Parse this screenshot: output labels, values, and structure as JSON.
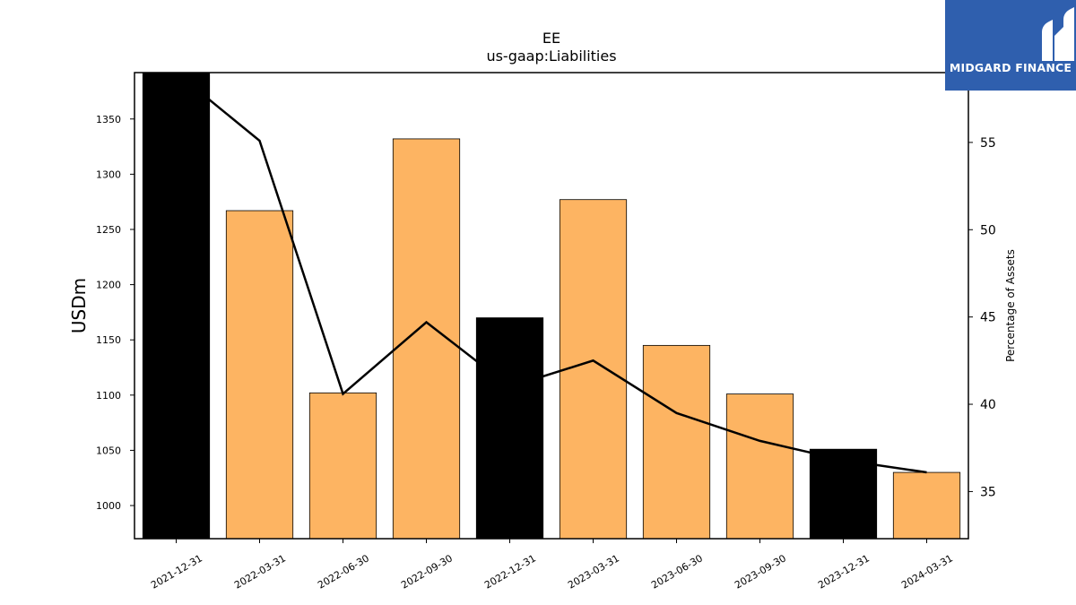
{
  "logo": {
    "text": "MIDGARD FINANCE",
    "icon": "midgard-m-logo-icon",
    "bg": "#2f5fae"
  },
  "chart_data": {
    "type": "bar",
    "title": "EE",
    "subtitle": "us-gaap:Liabilities",
    "ylabel": "USDm",
    "y2label": "Percentage of Assets",
    "categories": [
      "2021-12-31",
      "2022-03-31",
      "2022-06-30",
      "2022-09-30",
      "2022-12-31",
      "2023-03-31",
      "2023-06-30",
      "2023-09-30",
      "2023-12-31",
      "2024-03-31"
    ],
    "values": [
      1392,
      1267,
      1102,
      1332,
      1170,
      1277,
      1145,
      1101,
      1051,
      1030
    ],
    "bar_colors": [
      "#000000",
      "#fdb462",
      "#fdb462",
      "#fdb462",
      "#000000",
      "#fdb462",
      "#fdb462",
      "#fdb462",
      "#000000",
      "#fdb462"
    ],
    "line": {
      "name": "",
      "values": [
        59.0,
        55.1,
        40.6,
        44.7,
        41.0,
        42.5,
        39.5,
        37.9,
        36.8,
        36.1
      ],
      "color": "#000000"
    },
    "ylim": [
      970,
      1392
    ],
    "y2lim": [
      32.3,
      59.0
    ],
    "yticks": [
      1000,
      1050,
      1100,
      1150,
      1200,
      1250,
      1300,
      1350
    ],
    "y2ticks": [
      35,
      40,
      45,
      50,
      55
    ],
    "grid": false,
    "legend": "none"
  }
}
